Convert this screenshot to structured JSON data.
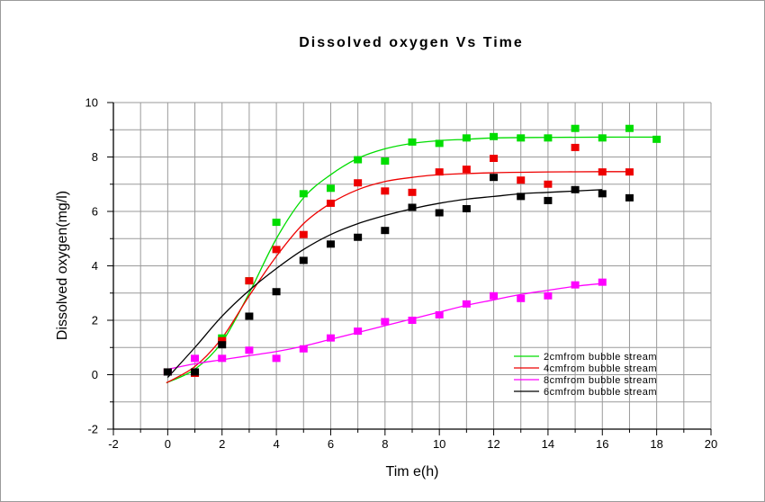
{
  "chart_data": {
    "type": "scatter",
    "title": "Dissolved oxygen Vs Time",
    "xlabel": "Tim e(h)",
    "ylabel": "Dissolved oxygen(mg/l)",
    "xlim": [
      -2,
      20
    ],
    "ylim": [
      -2,
      10
    ],
    "xticks": [
      -2,
      0,
      2,
      4,
      6,
      8,
      10,
      12,
      14,
      16,
      18,
      20
    ],
    "yticks": [
      -2,
      0,
      2,
      4,
      6,
      8,
      10
    ],
    "grid": true,
    "legend_position": "bottom-right",
    "series": [
      {
        "name": "2cmfrom bubble stream",
        "color": "#00dd00",
        "x": [
          0,
          1,
          2,
          3,
          4,
          5,
          6,
          7,
          8,
          9,
          10,
          11,
          12,
          13,
          14,
          15,
          16,
          17,
          18
        ],
        "y": [
          0.1,
          0.1,
          1.35,
          3.45,
          5.6,
          6.65,
          6.85,
          7.9,
          7.85,
          8.55,
          8.5,
          8.7,
          8.75,
          8.7,
          8.7,
          9.05,
          8.7,
          9.05,
          8.65
        ],
        "fit": [
          [
            -0.05,
            -0.3
          ],
          [
            1,
            0.2
          ],
          [
            2,
            1.2
          ],
          [
            3,
            3.0
          ],
          [
            4,
            5.0
          ],
          [
            5,
            6.5
          ],
          [
            6,
            7.35
          ],
          [
            7,
            7.95
          ],
          [
            8,
            8.3
          ],
          [
            9,
            8.5
          ],
          [
            10,
            8.6
          ],
          [
            11,
            8.65
          ],
          [
            12,
            8.7
          ],
          [
            14,
            8.72
          ],
          [
            16,
            8.73
          ],
          [
            18,
            8.73
          ]
        ]
      },
      {
        "name": "4cmfrom bubble stream",
        "color": "#ee0000",
        "x": [
          0,
          1,
          2,
          3,
          4,
          5,
          6,
          7,
          8,
          9,
          10,
          11,
          12,
          13,
          14,
          15,
          16,
          17
        ],
        "y": [
          0.1,
          0.05,
          1.25,
          3.45,
          4.6,
          5.15,
          6.3,
          7.05,
          6.75,
          6.7,
          7.45,
          7.55,
          7.95,
          7.15,
          7.0,
          8.35,
          7.45,
          7.45
        ],
        "fit": [
          [
            -0.05,
            -0.3
          ],
          [
            1,
            0.3
          ],
          [
            2,
            1.35
          ],
          [
            3,
            2.9
          ],
          [
            4,
            4.35
          ],
          [
            5,
            5.55
          ],
          [
            6,
            6.3
          ],
          [
            7,
            6.8
          ],
          [
            8,
            7.1
          ],
          [
            9,
            7.25
          ],
          [
            10,
            7.35
          ],
          [
            12,
            7.42
          ],
          [
            14,
            7.45
          ],
          [
            16,
            7.46
          ],
          [
            17,
            7.46
          ]
        ]
      },
      {
        "name": "8cmfrom bubble stream",
        "color": "#ff00ff",
        "x": [
          0,
          1,
          2,
          3,
          4,
          5,
          6,
          7,
          8,
          9,
          10,
          11,
          12,
          13,
          14,
          15,
          16
        ],
        "y": [
          0.1,
          0.6,
          0.6,
          0.9,
          0.6,
          0.95,
          1.35,
          1.6,
          1.95,
          2.0,
          2.2,
          2.6,
          2.9,
          2.8,
          2.9,
          3.3,
          3.4
        ],
        "fit": [
          [
            0,
            0.2
          ],
          [
            1,
            0.4
          ],
          [
            2,
            0.55
          ],
          [
            3,
            0.7
          ],
          [
            4,
            0.85
          ],
          [
            5,
            1.05
          ],
          [
            6,
            1.3
          ],
          [
            7,
            1.55
          ],
          [
            8,
            1.8
          ],
          [
            9,
            2.05
          ],
          [
            10,
            2.3
          ],
          [
            11,
            2.55
          ],
          [
            12,
            2.75
          ],
          [
            13,
            2.95
          ],
          [
            14,
            3.1
          ],
          [
            15,
            3.25
          ],
          [
            16,
            3.35
          ]
        ]
      },
      {
        "name": "6cmfrom bubble stream",
        "color": "#000000",
        "x": [
          0,
          1,
          2,
          3,
          4,
          5,
          6,
          7,
          8,
          9,
          10,
          11,
          12,
          13,
          14,
          15,
          16,
          17
        ],
        "y": [
          0.1,
          0.1,
          1.1,
          2.15,
          3.05,
          4.2,
          4.8,
          5.05,
          5.3,
          6.15,
          5.95,
          6.1,
          7.25,
          6.55,
          6.4,
          6.8,
          6.65,
          6.5
        ],
        "fit": [
          [
            0,
            -0.1
          ],
          [
            1,
            1.0
          ],
          [
            2,
            2.15
          ],
          [
            3,
            3.1
          ],
          [
            4,
            3.9
          ],
          [
            5,
            4.6
          ],
          [
            6,
            5.15
          ],
          [
            7,
            5.55
          ],
          [
            8,
            5.85
          ],
          [
            9,
            6.1
          ],
          [
            10,
            6.3
          ],
          [
            11,
            6.45
          ],
          [
            12,
            6.55
          ],
          [
            13,
            6.65
          ],
          [
            14,
            6.7
          ],
          [
            15,
            6.75
          ],
          [
            16,
            6.8
          ]
        ]
      }
    ]
  }
}
